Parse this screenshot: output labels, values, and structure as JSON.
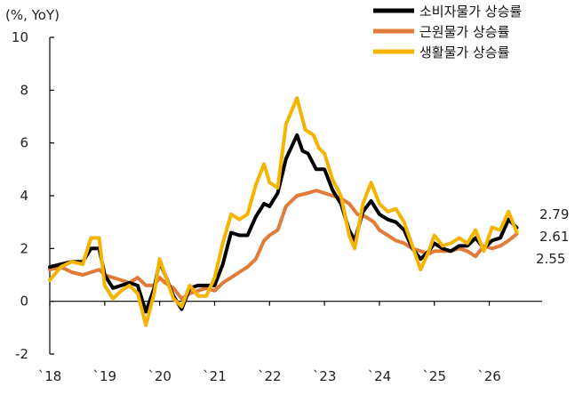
{
  "chart_data": {
    "type": "line",
    "unit_label": "(%, YoY)",
    "ylim": [
      -2,
      10
    ],
    "y_ticks": [
      -2,
      0,
      2,
      4,
      6,
      8,
      10
    ],
    "xlim": [
      2018.0,
      2026.8
    ],
    "x_ticks": [
      {
        "x": 2018,
        "label": "`18"
      },
      {
        "x": 2019,
        "label": "`19"
      },
      {
        "x": 2020,
        "label": "`20"
      },
      {
        "x": 2021,
        "label": "`21"
      },
      {
        "x": 2022,
        "label": "`22"
      },
      {
        "x": 2023,
        "label": "`23"
      },
      {
        "x": 2024,
        "label": "`24"
      },
      {
        "x": 2025,
        "label": "`25"
      },
      {
        "x": 2026,
        "label": "`26"
      }
    ],
    "grid": false,
    "legend_position": "top-right",
    "end_labels": [
      "2.79",
      "2.61",
      "2.55"
    ],
    "series": [
      {
        "name": "소비자물가 상승률",
        "color": "#000000",
        "points": [
          [
            2018.0,
            1.3
          ],
          [
            2018.2,
            1.4
          ],
          [
            2018.4,
            1.5
          ],
          [
            2018.6,
            1.5
          ],
          [
            2018.75,
            2.0
          ],
          [
            2018.9,
            2.0
          ],
          [
            2019.0,
            1.0
          ],
          [
            2019.15,
            0.5
          ],
          [
            2019.3,
            0.6
          ],
          [
            2019.45,
            0.7
          ],
          [
            2019.6,
            0.6
          ],
          [
            2019.75,
            -0.4
          ],
          [
            2019.9,
            0.5
          ],
          [
            2020.0,
            1.5
          ],
          [
            2020.1,
            1.0
          ],
          [
            2020.25,
            0.2
          ],
          [
            2020.4,
            -0.3
          ],
          [
            2020.55,
            0.5
          ],
          [
            2020.7,
            0.6
          ],
          [
            2020.85,
            0.6
          ],
          [
            2021.0,
            0.6
          ],
          [
            2021.15,
            1.4
          ],
          [
            2021.3,
            2.6
          ],
          [
            2021.45,
            2.5
          ],
          [
            2021.6,
            2.5
          ],
          [
            2021.75,
            3.2
          ],
          [
            2021.9,
            3.7
          ],
          [
            2022.0,
            3.6
          ],
          [
            2022.15,
            4.1
          ],
          [
            2022.3,
            5.4
          ],
          [
            2022.5,
            6.3
          ],
          [
            2022.6,
            5.7
          ],
          [
            2022.7,
            5.6
          ],
          [
            2022.85,
            5.0
          ],
          [
            2023.0,
            5.0
          ],
          [
            2023.15,
            4.2
          ],
          [
            2023.3,
            3.7
          ],
          [
            2023.45,
            2.7
          ],
          [
            2023.55,
            2.3
          ],
          [
            2023.7,
            3.4
          ],
          [
            2023.85,
            3.8
          ],
          [
            2024.0,
            3.3
          ],
          [
            2024.15,
            3.1
          ],
          [
            2024.3,
            3.0
          ],
          [
            2024.45,
            2.7
          ],
          [
            2024.6,
            2.0
          ],
          [
            2024.75,
            1.6
          ],
          [
            2024.9,
            1.9
          ],
          [
            2025.0,
            2.2
          ],
          [
            2025.15,
            2.0
          ],
          [
            2025.3,
            1.9
          ],
          [
            2025.45,
            2.1
          ],
          [
            2025.6,
            2.1
          ],
          [
            2025.75,
            2.4
          ],
          [
            2025.9,
            2.0
          ],
          [
            2026.05,
            2.3
          ],
          [
            2026.2,
            2.4
          ],
          [
            2026.35,
            3.1
          ],
          [
            2026.5,
            2.79
          ]
        ]
      },
      {
        "name": "근원물가 상승률",
        "color": "#e07b39",
        "points": [
          [
            2018.0,
            1.2
          ],
          [
            2018.2,
            1.3
          ],
          [
            2018.4,
            1.1
          ],
          [
            2018.6,
            1.0
          ],
          [
            2018.75,
            1.1
          ],
          [
            2018.9,
            1.2
          ],
          [
            2019.0,
            1.0
          ],
          [
            2019.15,
            0.9
          ],
          [
            2019.3,
            0.8
          ],
          [
            2019.45,
            0.7
          ],
          [
            2019.6,
            0.9
          ],
          [
            2019.75,
            0.6
          ],
          [
            2019.9,
            0.6
          ],
          [
            2020.0,
            0.9
          ],
          [
            2020.1,
            0.7
          ],
          [
            2020.25,
            0.5
          ],
          [
            2020.4,
            0.1
          ],
          [
            2020.55,
            0.3
          ],
          [
            2020.7,
            0.4
          ],
          [
            2020.85,
            0.5
          ],
          [
            2021.0,
            0.4
          ],
          [
            2021.15,
            0.7
          ],
          [
            2021.3,
            0.9
          ],
          [
            2021.45,
            1.1
          ],
          [
            2021.6,
            1.3
          ],
          [
            2021.75,
            1.6
          ],
          [
            2021.9,
            2.3
          ],
          [
            2022.0,
            2.5
          ],
          [
            2022.15,
            2.7
          ],
          [
            2022.3,
            3.6
          ],
          [
            2022.5,
            4.0
          ],
          [
            2022.7,
            4.1
          ],
          [
            2022.85,
            4.2
          ],
          [
            2023.0,
            4.1
          ],
          [
            2023.15,
            4.0
          ],
          [
            2023.3,
            3.9
          ],
          [
            2023.45,
            3.7
          ],
          [
            2023.6,
            3.3
          ],
          [
            2023.75,
            3.2
          ],
          [
            2023.9,
            3.0
          ],
          [
            2024.0,
            2.7
          ],
          [
            2024.15,
            2.5
          ],
          [
            2024.3,
            2.3
          ],
          [
            2024.45,
            2.2
          ],
          [
            2024.6,
            2.0
          ],
          [
            2024.75,
            1.9
          ],
          [
            2024.9,
            1.8
          ],
          [
            2025.0,
            1.9
          ],
          [
            2025.15,
            1.9
          ],
          [
            2025.3,
            1.9
          ],
          [
            2025.45,
            2.0
          ],
          [
            2025.6,
            1.9
          ],
          [
            2025.75,
            1.7
          ],
          [
            2025.9,
            2.1
          ],
          [
            2026.05,
            2.0
          ],
          [
            2026.2,
            2.1
          ],
          [
            2026.35,
            2.3
          ],
          [
            2026.5,
            2.55
          ]
        ]
      },
      {
        "name": "생활물가 상승률",
        "color": "#f4b400",
        "points": [
          [
            2018.0,
            0.8
          ],
          [
            2018.2,
            1.3
          ],
          [
            2018.4,
            1.5
          ],
          [
            2018.6,
            1.4
          ],
          [
            2018.75,
            2.4
          ],
          [
            2018.9,
            2.4
          ],
          [
            2019.0,
            0.6
          ],
          [
            2019.15,
            0.1
          ],
          [
            2019.3,
            0.4
          ],
          [
            2019.45,
            0.6
          ],
          [
            2019.6,
            0.3
          ],
          [
            2019.75,
            -0.9
          ],
          [
            2019.9,
            0.3
          ],
          [
            2020.0,
            1.6
          ],
          [
            2020.1,
            1.0
          ],
          [
            2020.25,
            0.1
          ],
          [
            2020.4,
            -0.2
          ],
          [
            2020.55,
            0.6
          ],
          [
            2020.7,
            0.2
          ],
          [
            2020.85,
            0.2
          ],
          [
            2021.0,
            0.9
          ],
          [
            2021.15,
            2.2
          ],
          [
            2021.3,
            3.3
          ],
          [
            2021.45,
            3.1
          ],
          [
            2021.6,
            3.3
          ],
          [
            2021.75,
            4.4
          ],
          [
            2021.9,
            5.2
          ],
          [
            2022.0,
            4.5
          ],
          [
            2022.15,
            4.3
          ],
          [
            2022.3,
            6.7
          ],
          [
            2022.5,
            7.7
          ],
          [
            2022.65,
            6.5
          ],
          [
            2022.8,
            6.3
          ],
          [
            2022.9,
            5.8
          ],
          [
            2023.0,
            5.6
          ],
          [
            2023.15,
            4.6
          ],
          [
            2023.3,
            4.0
          ],
          [
            2023.45,
            2.5
          ],
          [
            2023.55,
            2.0
          ],
          [
            2023.7,
            3.7
          ],
          [
            2023.85,
            4.5
          ],
          [
            2024.0,
            3.7
          ],
          [
            2024.15,
            3.4
          ],
          [
            2024.3,
            3.5
          ],
          [
            2024.45,
            3.0
          ],
          [
            2024.6,
            2.1
          ],
          [
            2024.75,
            1.2
          ],
          [
            2024.9,
            1.9
          ],
          [
            2025.0,
            2.5
          ],
          [
            2025.15,
            2.1
          ],
          [
            2025.3,
            2.2
          ],
          [
            2025.45,
            2.4
          ],
          [
            2025.6,
            2.2
          ],
          [
            2025.75,
            2.7
          ],
          [
            2025.9,
            1.9
          ],
          [
            2026.05,
            2.8
          ],
          [
            2026.2,
            2.7
          ],
          [
            2026.35,
            3.4
          ],
          [
            2026.5,
            2.61
          ]
        ]
      }
    ]
  }
}
